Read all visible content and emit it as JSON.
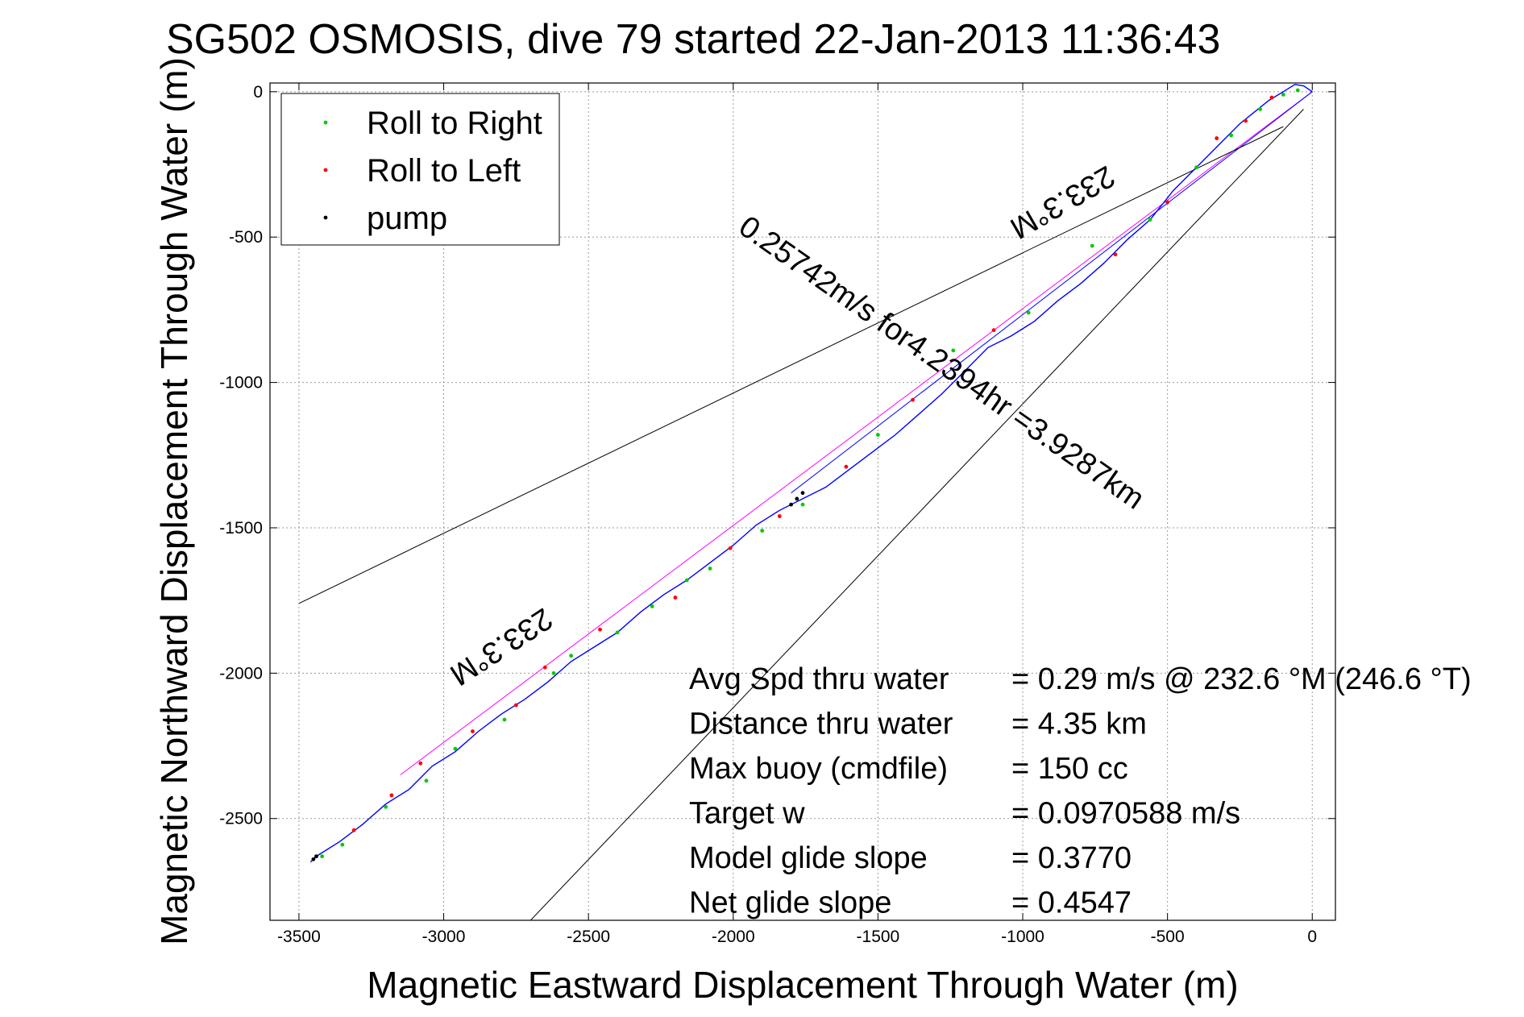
{
  "chart_data": {
    "type": "line",
    "title": "SG502 OSMOSIS, dive 79 started 22-Jan-2013 11:36:43",
    "xlabel": "Magnetic Eastward Displacement Through Water (m)",
    "ylabel": "Magnetic Northward Displacement Through Water (m)",
    "xlim": [
      -3600,
      80
    ],
    "ylim": [
      -2850,
      30
    ],
    "xticks": [
      -3500,
      -3000,
      -2500,
      -2000,
      -1500,
      -1000,
      -500,
      0
    ],
    "yticks": [
      0,
      -500,
      -1000,
      -1500,
      -2000,
      -2500
    ],
    "grid": true,
    "legend_position": "top-left",
    "legend": [
      {
        "label": "Roll to Right",
        "color": "#00cc00"
      },
      {
        "label": "Roll to Left",
        "color": "#ff0000"
      },
      {
        "label": "pump",
        "color": "#000000"
      }
    ],
    "track": {
      "color": "#0000ff",
      "x": [
        0,
        -30,
        -60,
        -100,
        -150,
        -200,
        -250,
        -320,
        -400,
        -480,
        -560,
        -640,
        -720,
        -800,
        -880,
        -960,
        -1040,
        -1120,
        -1200,
        -1280,
        -1360,
        -1440,
        -1520,
        -1600,
        -1680,
        -1760,
        -1840,
        -1920,
        -2000,
        -2080,
        -2160,
        -2240,
        -2320,
        -2400,
        -2480,
        -2560,
        -2640,
        -2720,
        -2800,
        -2880,
        -2960,
        -3040,
        -3120,
        -3200,
        -3280,
        -3360,
        -3440,
        -3460
      ],
      "y": [
        0,
        20,
        25,
        0,
        -30,
        -70,
        -110,
        -180,
        -260,
        -340,
        -440,
        -510,
        -590,
        -660,
        -720,
        -790,
        -840,
        -880,
        -960,
        -1040,
        -1110,
        -1180,
        -1240,
        -1300,
        -1360,
        -1400,
        -1440,
        -1490,
        -1560,
        -1620,
        -1680,
        -1730,
        -1790,
        -1860,
        -1910,
        -1960,
        -2030,
        -2090,
        -2140,
        -2200,
        -2270,
        -2320,
        -2400,
        -2450,
        -2520,
        -2580,
        -2630,
        -2650
      ]
    },
    "markers": {
      "roll_right": {
        "x": [
          -50,
          -100,
          -180,
          -280,
          -400,
          -560,
          -760,
          -980,
          -1240,
          -1500,
          -1760,
          -1900,
          -2080,
          -2160,
          -2280,
          -2400,
          -2560,
          -2620,
          -2790,
          -2960,
          -3060,
          -3200,
          -3350,
          -3420
        ],
        "y": [
          5,
          -10,
          -60,
          -150,
          -260,
          -440,
          -530,
          -760,
          -890,
          -1180,
          -1420,
          -1510,
          -1640,
          -1680,
          -1770,
          -1860,
          -1940,
          -2000,
          -2160,
          -2260,
          -2370,
          -2460,
          -2590,
          -2630
        ]
      },
      "roll_left": {
        "x": [
          -140,
          -230,
          -330,
          -500,
          -680,
          -1100,
          -1380,
          -1610,
          -1840,
          -2010,
          -2200,
          -2460,
          -2650,
          -2750,
          -2900,
          -3080,
          -3180,
          -3310
        ],
        "y": [
          -20,
          -100,
          -160,
          -380,
          -560,
          -820,
          -1060,
          -1290,
          -1460,
          -1570,
          -1740,
          -1850,
          -1980,
          -2110,
          -2200,
          -2310,
          -2420,
          -2540
        ]
      },
      "pump": {
        "x": [
          -1760,
          -1780,
          -1800,
          -3440,
          -3450
        ],
        "y": [
          -1380,
          -1400,
          -1420,
          -2630,
          -2640
        ]
      }
    },
    "reference_lines": [
      {
        "name": "heading_line",
        "color": "#ff00ff",
        "x": [
          0,
          -3150
        ],
        "y": [
          0,
          -2350
        ]
      },
      {
        "name": "current_line",
        "color": "#0000ff",
        "x": [
          0,
          -1800
        ],
        "y": [
          0,
          -1380
        ]
      },
      {
        "name": "cone_upper",
        "color": "#000000",
        "x": [
          -100,
          -3500
        ],
        "y": [
          -120,
          -1760
        ]
      },
      {
        "name": "cone_lower",
        "color": "#000000",
        "x": [
          -30,
          -2700
        ],
        "y": [
          -60,
          -2850
        ]
      }
    ],
    "annotations": [
      {
        "text": "233.3°M",
        "x": -880,
        "y": -350,
        "rotation": 150
      },
      {
        "text": "0.25742m/s for4.2394hr =3.9287km",
        "x": -1300,
        "y": -960,
        "rotation": 35
      },
      {
        "text": "233.3°M",
        "x": -2820,
        "y": -1880,
        "rotation": 147
      }
    ],
    "stats": [
      {
        "label": "Avg Spd thru water",
        "value": "=  0.29 m/s @ 232.6 °M (246.6 °T)"
      },
      {
        "label": "Distance thru water",
        "value": "=  4.35 km"
      },
      {
        "label": "Max buoy (cmdfile)",
        "value": "= 150 cc"
      },
      {
        "label": "Target w",
        "value": "= 0.0970588 m/s"
      },
      {
        "label": "Model glide slope",
        "value": "= 0.3770"
      },
      {
        "label": "Net glide slope",
        "value": "= 0.4547"
      }
    ]
  }
}
